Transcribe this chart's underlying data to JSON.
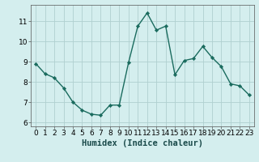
{
  "x": [
    0,
    1,
    2,
    3,
    4,
    5,
    6,
    7,
    8,
    9,
    10,
    11,
    12,
    13,
    14,
    15,
    16,
    17,
    18,
    19,
    20,
    21,
    22,
    23
  ],
  "y": [
    8.9,
    8.4,
    8.2,
    7.7,
    7.0,
    6.6,
    6.4,
    6.35,
    6.85,
    6.85,
    8.95,
    10.75,
    11.4,
    10.55,
    10.75,
    8.35,
    9.05,
    9.15,
    9.75,
    9.2,
    8.75,
    7.9,
    7.8,
    7.35
  ],
  "line_color": "#1a6b5e",
  "marker": "D",
  "marker_size": 2.2,
  "bg_color": "#d4eeee",
  "grid_color": "#b0d0d0",
  "xlabel": "Humidex (Indice chaleur)",
  "ylim": [
    5.8,
    11.8
  ],
  "xlim": [
    -0.5,
    23.5
  ],
  "yticks": [
    6,
    7,
    8,
    9,
    10,
    11
  ],
  "xticks": [
    0,
    1,
    2,
    3,
    4,
    5,
    6,
    7,
    8,
    9,
    10,
    11,
    12,
    13,
    14,
    15,
    16,
    17,
    18,
    19,
    20,
    21,
    22,
    23
  ],
  "tick_fontsize": 6.5,
  "xlabel_fontsize": 7.5,
  "line_width": 1.0,
  "marker_color": "#1a6b5e"
}
